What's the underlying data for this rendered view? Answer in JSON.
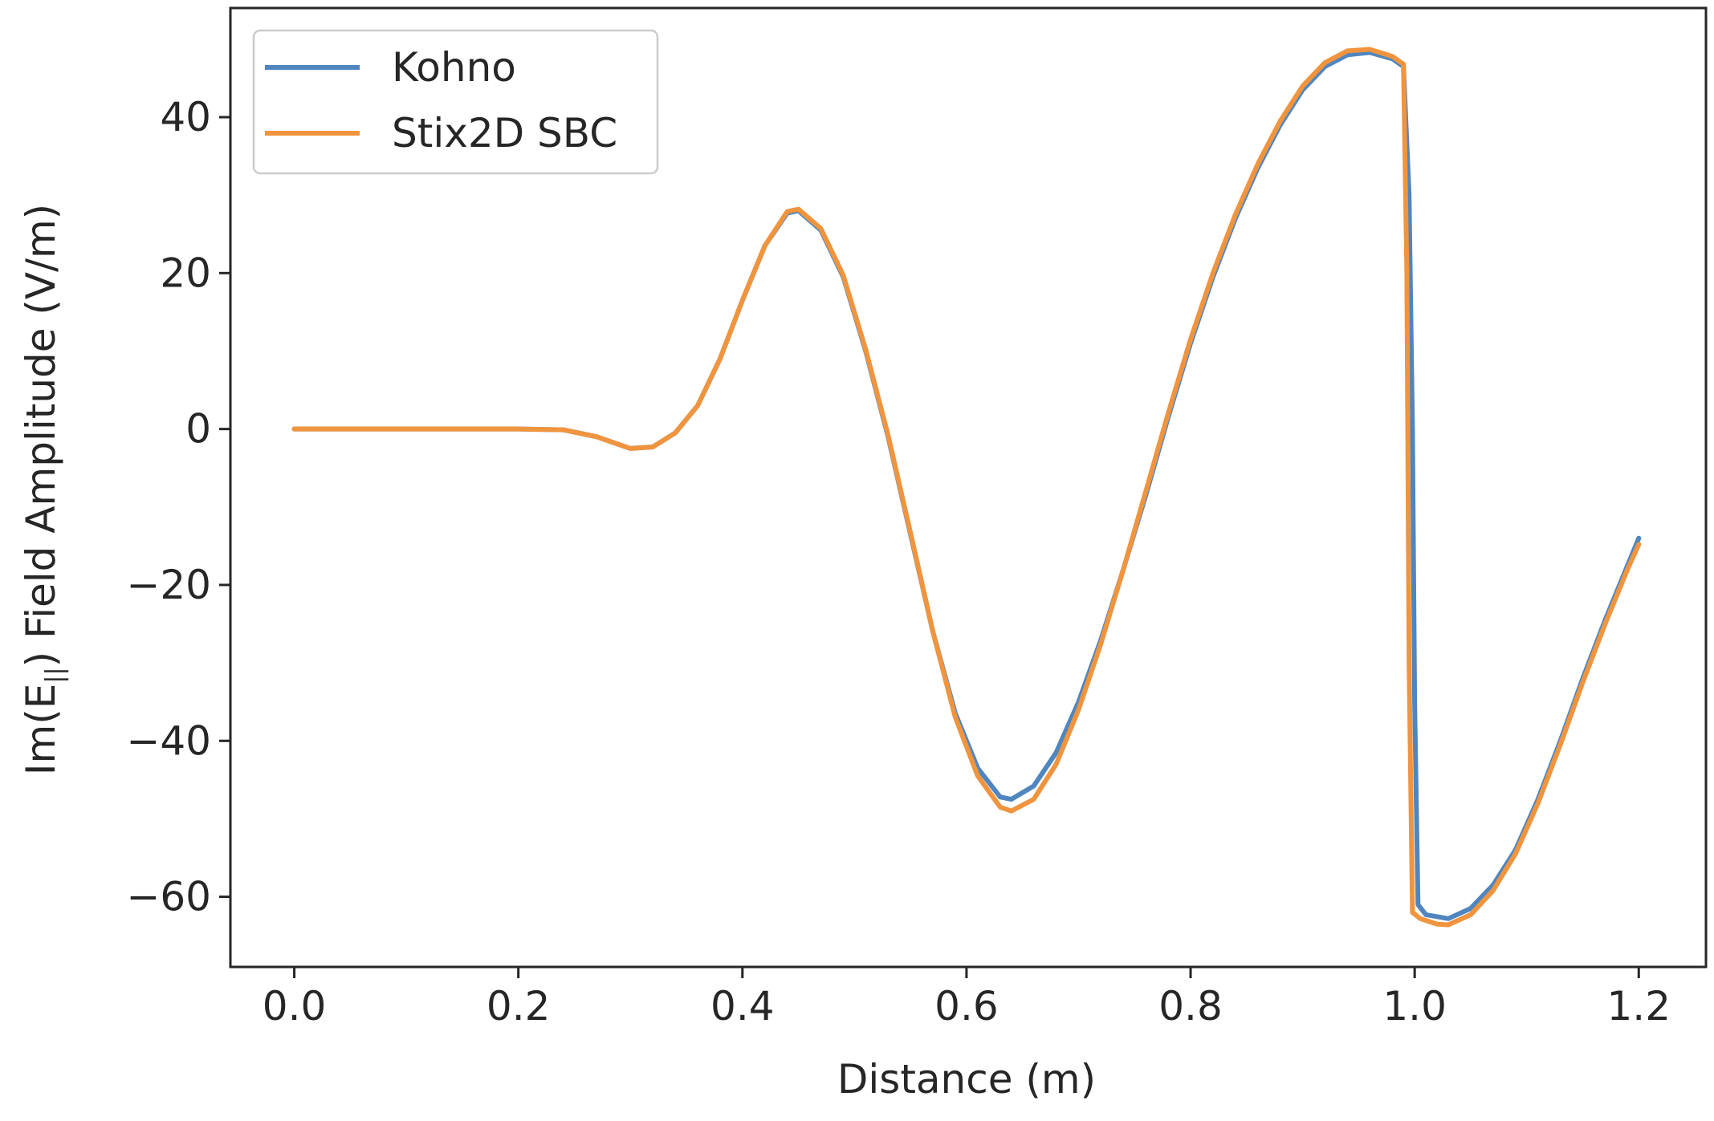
{
  "chart_data": {
    "type": "line",
    "title": "",
    "xlabel": "Distance (m)",
    "ylabel": "Im(E",
    "ylabel_subscript": "||",
    "ylabel_suffix": ") Field Amplitude (V/m)",
    "xlim": [
      -0.057,
      1.26
    ],
    "ylim": [
      -69,
      54
    ],
    "xticks": [
      0.0,
      0.2,
      0.4,
      0.6,
      0.8,
      1.0,
      1.2
    ],
    "xtick_labels": [
      "0.0",
      "0.2",
      "0.4",
      "0.6",
      "0.8",
      "1.0",
      "1.2"
    ],
    "yticks": [
      40,
      20,
      0,
      -20,
      -40,
      -60
    ],
    "ytick_labels": [
      "40",
      "20",
      "0",
      "−20",
      "−40",
      "−60"
    ],
    "grid": false,
    "legend_position": "top-left",
    "series": [
      {
        "name": "Kohno",
        "color": "#4f86c0",
        "points": [
          [
            0.0,
            0.0
          ],
          [
            0.05,
            0.0
          ],
          [
            0.1,
            0.0
          ],
          [
            0.15,
            0.0
          ],
          [
            0.2,
            0.0
          ],
          [
            0.24,
            -0.1
          ],
          [
            0.27,
            -1.0
          ],
          [
            0.3,
            -2.5
          ],
          [
            0.32,
            -2.3
          ],
          [
            0.34,
            -0.5
          ],
          [
            0.36,
            3.0
          ],
          [
            0.38,
            9.0
          ],
          [
            0.4,
            16.5
          ],
          [
            0.42,
            23.5
          ],
          [
            0.44,
            27.7
          ],
          [
            0.45,
            28.0
          ],
          [
            0.47,
            25.5
          ],
          [
            0.49,
            19.5
          ],
          [
            0.51,
            10.0
          ],
          [
            0.53,
            -1.0
          ],
          [
            0.55,
            -13.5
          ],
          [
            0.57,
            -26.0
          ],
          [
            0.59,
            -36.5
          ],
          [
            0.61,
            -43.5
          ],
          [
            0.63,
            -47.2
          ],
          [
            0.64,
            -47.5
          ],
          [
            0.66,
            -45.8
          ],
          [
            0.68,
            -41.5
          ],
          [
            0.7,
            -35.0
          ],
          [
            0.72,
            -27.0
          ],
          [
            0.74,
            -18.0
          ],
          [
            0.76,
            -8.5
          ],
          [
            0.78,
            1.5
          ],
          [
            0.8,
            11.0
          ],
          [
            0.82,
            19.5
          ],
          [
            0.84,
            27.0
          ],
          [
            0.86,
            33.5
          ],
          [
            0.88,
            39.0
          ],
          [
            0.9,
            43.5
          ],
          [
            0.92,
            46.5
          ],
          [
            0.94,
            48.0
          ],
          [
            0.96,
            48.3
          ],
          [
            0.98,
            47.5
          ],
          [
            0.99,
            46.5
          ],
          [
            0.995,
            30.0
          ],
          [
            0.998,
            0.0
          ],
          [
            1.0,
            -35.0
          ],
          [
            1.003,
            -61.0
          ],
          [
            1.01,
            -62.3
          ],
          [
            1.03,
            -62.8
          ],
          [
            1.05,
            -61.5
          ],
          [
            1.07,
            -58.5
          ],
          [
            1.09,
            -54.0
          ],
          [
            1.11,
            -47.5
          ],
          [
            1.13,
            -40.0
          ],
          [
            1.15,
            -32.0
          ],
          [
            1.17,
            -24.5
          ],
          [
            1.19,
            -17.5
          ],
          [
            1.2,
            -14.0
          ]
        ]
      },
      {
        "name": "Stix2D SBC",
        "color": "#f0943e",
        "points": [
          [
            0.0,
            0.0
          ],
          [
            0.05,
            0.0
          ],
          [
            0.1,
            0.0
          ],
          [
            0.15,
            0.0
          ],
          [
            0.2,
            0.0
          ],
          [
            0.24,
            -0.1
          ],
          [
            0.27,
            -1.0
          ],
          [
            0.3,
            -2.5
          ],
          [
            0.32,
            -2.3
          ],
          [
            0.34,
            -0.5
          ],
          [
            0.36,
            3.0
          ],
          [
            0.38,
            9.0
          ],
          [
            0.4,
            16.5
          ],
          [
            0.42,
            23.5
          ],
          [
            0.44,
            27.9
          ],
          [
            0.45,
            28.2
          ],
          [
            0.47,
            25.7
          ],
          [
            0.49,
            19.7
          ],
          [
            0.51,
            10.2
          ],
          [
            0.53,
            -0.8
          ],
          [
            0.55,
            -13.3
          ],
          [
            0.57,
            -26.0
          ],
          [
            0.59,
            -37.0
          ],
          [
            0.61,
            -44.5
          ],
          [
            0.63,
            -48.5
          ],
          [
            0.64,
            -49.0
          ],
          [
            0.66,
            -47.5
          ],
          [
            0.68,
            -43.0
          ],
          [
            0.7,
            -36.0
          ],
          [
            0.72,
            -27.5
          ],
          [
            0.74,
            -18.0
          ],
          [
            0.76,
            -8.0
          ],
          [
            0.78,
            2.0
          ],
          [
            0.8,
            11.5
          ],
          [
            0.82,
            20.0
          ],
          [
            0.84,
            27.5
          ],
          [
            0.86,
            34.0
          ],
          [
            0.88,
            39.5
          ],
          [
            0.9,
            44.0
          ],
          [
            0.92,
            47.0
          ],
          [
            0.94,
            48.5
          ],
          [
            0.96,
            48.7
          ],
          [
            0.98,
            47.8
          ],
          [
            0.99,
            46.8
          ],
          [
            0.993,
            20.0
          ],
          [
            0.995,
            -30.0
          ],
          [
            0.998,
            -62.0
          ],
          [
            1.005,
            -62.8
          ],
          [
            1.02,
            -63.5
          ],
          [
            1.03,
            -63.6
          ],
          [
            1.05,
            -62.3
          ],
          [
            1.07,
            -59.2
          ],
          [
            1.09,
            -54.5
          ],
          [
            1.11,
            -48.0
          ],
          [
            1.13,
            -40.5
          ],
          [
            1.15,
            -32.5
          ],
          [
            1.17,
            -25.0
          ],
          [
            1.19,
            -18.0
          ],
          [
            1.2,
            -14.8
          ]
        ]
      }
    ]
  }
}
